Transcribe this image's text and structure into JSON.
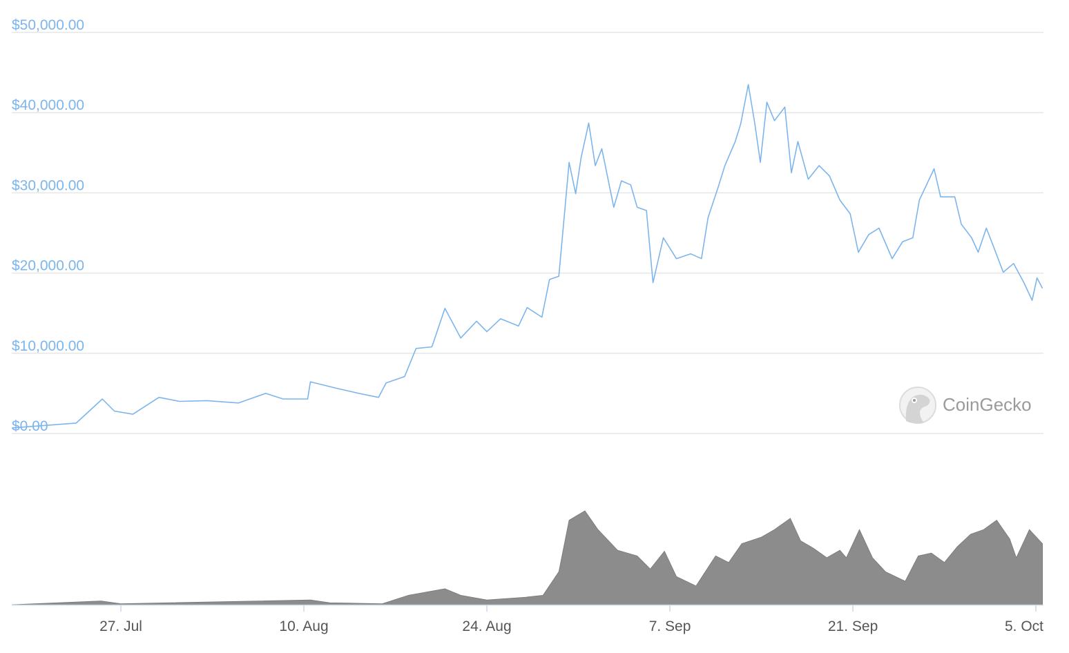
{
  "chart_data": {
    "type": "line",
    "title": "",
    "xlabel": "",
    "ylabel": "",
    "ylim": [
      0,
      50000
    ],
    "grid": true,
    "legend": "none",
    "y_tick_labels": [
      "$0.00",
      "$10,000.00",
      "$20,000.00",
      "$30,000.00",
      "$40,000.00",
      "$50,000.00"
    ],
    "y_ticks": [
      0,
      10000,
      20000,
      30000,
      40000,
      50000
    ],
    "x_tick_labels": [
      "27. Jul",
      "10. Aug",
      "24. Aug",
      "7. Sep",
      "21. Sep",
      "5. Oct"
    ],
    "x_ticks": [
      "Jul 27 00:00",
      "Aug 10 00:00",
      "Aug 24 00:00",
      "Sep 7 00:00",
      "Sep 21 00:00",
      "Oct 5 00:00"
    ],
    "colors": {
      "price": "#7cb5ec",
      "volume": "#8c8c8c",
      "grid": "#e6e6e6",
      "axis": "#ccd6eb"
    },
    "watermark": "CoinGecko",
    "series": [
      {
        "key": "price",
        "x": [
          "Jul 18 16:00",
          "Jul 23 14:00",
          "Jul 25 14:00",
          "Jul 26 12:00",
          "Jul 27 22:00",
          "Jul 29 22:00",
          "Jul 31 12:00",
          "Aug 2 14:00",
          "Aug 5 00:00",
          "Aug 7 02:00",
          "Aug 8 10:00",
          "Aug 10 07:00",
          "Aug 10 12:00",
          "Aug 12 14:00",
          "Aug 14 05:00",
          "Aug 15 17:00",
          "Aug 16 07:00",
          "Aug 17 17:00",
          "Aug 18 14:00",
          "Aug 19 19:00",
          "Aug 20 19:00",
          "Aug 22 00:00",
          "Aug 23 05:00",
          "Aug 24 00:00",
          "Aug 25 01:00",
          "Aug 26 10:00",
          "Aug 27 02:00",
          "Aug 28 05:00",
          "Aug 28 19:00",
          "Aug 29 12:00",
          "Aug 29 19:00",
          "Aug 30 07:00",
          "Aug 30 19:00",
          "Aug 31 05:00",
          "Aug 31 19:00",
          "Sep 1 07:00",
          "Sep 1 19:00",
          "Sep 2 17:00",
          "Sep 3 07:00",
          "Sep 4 00:00",
          "Sep 4 12:00",
          "Sep 5 05:00",
          "Sep 5 17:00",
          "Sep 6 12:00",
          "Sep 7 12:00",
          "Sep 8 14:00",
          "Sep 9 10:00",
          "Sep 9 22:00",
          "Sep 10 17:00",
          "Sep 11 05:00",
          "Sep 12 00:00",
          "Sep 12 10:00",
          "Sep 13 00:00",
          "Sep 13 12:00",
          "Sep 13 22:00",
          "Sep 14 10:00",
          "Sep 15 00:00",
          "Sep 15 19:00",
          "Sep 16 07:00",
          "Sep 16 19:00",
          "Sep 17 14:00",
          "Sep 18 10:00",
          "Sep 19 05:00",
          "Sep 20 00:00",
          "Sep 20 19:00",
          "Sep 21 10:00",
          "Sep 22 05:00",
          "Sep 23 00:00",
          "Sep 24 00:00",
          "Sep 24 19:00",
          "Sep 25 14:00",
          "Sep 26 02:00",
          "Sep 27 05:00",
          "Sep 27 17:00",
          "Sep 28 19:00",
          "Sep 29 07:00",
          "Sep 30 02:00",
          "Sep 30 14:00",
          "Oct 1 05:00",
          "Oct 1 17:00",
          "Oct 2 12:00",
          "Oct 3 07:00",
          "Oct 4 02:00",
          "Oct 4 17:00",
          "Oct 5 02:00",
          "Oct 5 12:00"
        ],
        "values": [
          700,
          1300,
          4300,
          2800,
          2400,
          4500,
          4000,
          4100,
          3800,
          5000,
          4300,
          4300,
          6450,
          5600,
          5000,
          4500,
          6300,
          7100,
          10600,
          10800,
          15600,
          11900,
          14000,
          12700,
          14300,
          13400,
          15700,
          14500,
          19200,
          19600,
          24800,
          33800,
          29900,
          34400,
          38700,
          33400,
          35500,
          28200,
          31500,
          31000,
          28200,
          27800,
          18800,
          24400,
          21800,
          22400,
          21800,
          26900,
          30800,
          33400,
          36400,
          38600,
          43500,
          38600,
          33800,
          41300,
          39000,
          40700,
          32500,
          36400,
          31700,
          33400,
          32100,
          29100,
          27400,
          22600,
          24800,
          25600,
          21800,
          23900,
          24400,
          29100,
          33000,
          29500,
          29500,
          26100,
          24400,
          22600,
          25600,
          23500,
          20100,
          21200,
          18800,
          16600,
          19400,
          18100
        ]
      },
      {
        "key": "volume",
        "unit": "relative (no axis shown)",
        "x": [
          "Jul 18 16:00",
          "Jul 25 12:00",
          "Jul 27 00:00",
          "Aug 10 12:00",
          "Aug 12 00:00",
          "Aug 16 00:00",
          "Aug 18 00:00",
          "Aug 20 19:00",
          "Aug 22 00:00",
          "Aug 24 00:00",
          "Aug 27 00:00",
          "Aug 28 07:00",
          "Aug 29 12:00",
          "Aug 30 07:00",
          "Aug 31 12:00",
          "Sep 1 12:00",
          "Sep 3 00:00",
          "Sep 4 12:00",
          "Sep 5 12:00",
          "Sep 6 14:00",
          "Sep 7 12:00",
          "Sep 9 00:00",
          "Sep 10 12:00",
          "Sep 11 12:00",
          "Sep 12 12:00",
          "Sep 14 00:00",
          "Sep 15 00:00",
          "Sep 16 05:00",
          "Sep 17 00:00",
          "Sep 18 00:00",
          "Sep 19 00:00",
          "Sep 20 00:00",
          "Sep 20 12:00",
          "Sep 21 12:00",
          "Sep 22 12:00",
          "Sep 23 12:00",
          "Sep 25 00:00",
          "Sep 26 00:00",
          "Sep 27 00:00",
          "Sep 28 00:00",
          "Sep 29 00:00",
          "Sep 30 00:00",
          "Oct 1 00:00",
          "Oct 2 00:00",
          "Oct 3 00:00",
          "Oct 3 12:00",
          "Oct 4 12:00",
          "Oct 5 12:00"
        ],
        "values": [
          0,
          4,
          1,
          5,
          2,
          1,
          10,
          17,
          10,
          5,
          8,
          10,
          35,
          90,
          100,
          80,
          58,
          52,
          38,
          57,
          30,
          20,
          52,
          45,
          65,
          72,
          80,
          92,
          68,
          60,
          50,
          58,
          50,
          80,
          50,
          35,
          25,
          52,
          55,
          45,
          62,
          75,
          80,
          90,
          70,
          50,
          80,
          65
        ]
      }
    ]
  }
}
